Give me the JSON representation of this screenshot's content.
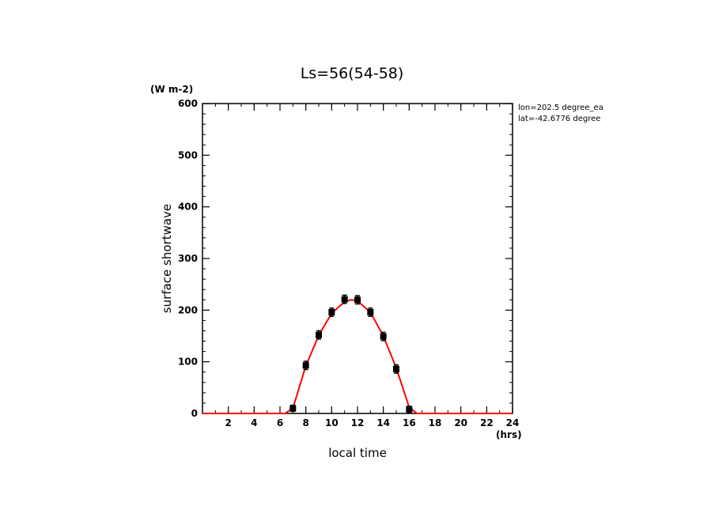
{
  "chart_data": {
    "type": "line",
    "title": "Ls=56(54-58)",
    "xlabel": "local time",
    "xunit": "(hrs)",
    "ylabel": "surface shortwave",
    "yunit": "(W m-2)",
    "xlim": [
      0,
      24
    ],
    "ylim": [
      0,
      600
    ],
    "xticks": [
      2,
      4,
      6,
      8,
      10,
      12,
      14,
      16,
      18,
      20,
      22,
      24
    ],
    "yticks": [
      0,
      100,
      200,
      300,
      400,
      500,
      600
    ],
    "grid": false,
    "annotations": [
      "lon=202.5 degree_ea",
      "lat=-42.6776 degree"
    ],
    "series": [
      {
        "style": "markers-with-errorbars",
        "color": "#000000",
        "x": [
          7,
          8,
          9,
          10,
          11,
          12,
          13,
          14,
          15,
          16
        ],
        "values": [
          10,
          93,
          152,
          196,
          221,
          220,
          196,
          149,
          86,
          8
        ],
        "err": [
          6,
          8,
          8,
          8,
          8,
          8,
          8,
          8,
          8,
          6
        ]
      },
      {
        "style": "line",
        "color": "#ff0000",
        "x": [
          0,
          6.4,
          7,
          8,
          9,
          10,
          11,
          11.5,
          12,
          13,
          14,
          15,
          16,
          16.6,
          17.2,
          24
        ],
        "values": [
          0,
          0,
          10,
          92,
          151,
          194,
          216,
          220,
          218,
          196,
          150,
          88,
          12,
          0,
          0,
          0
        ]
      }
    ]
  }
}
